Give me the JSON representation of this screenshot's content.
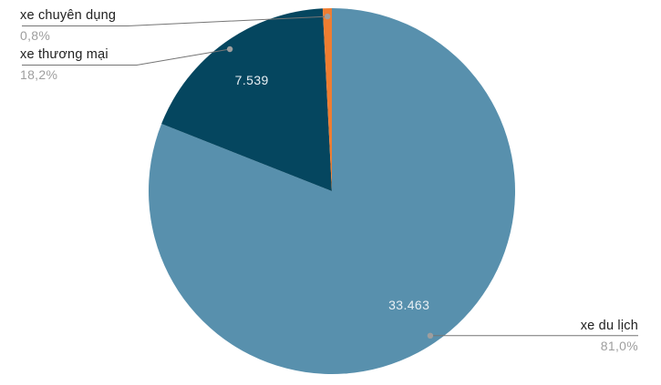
{
  "page": {
    "background": "#ffffff"
  },
  "chart_data": {
    "type": "pie",
    "title": "",
    "legend_position": "none",
    "start_angle_deg": -90,
    "direction": "clockwise",
    "slices": [
      {
        "label": "xe du lịch",
        "percent": 81.0,
        "percent_label": "81,0%",
        "value": 33463,
        "value_label": "33.463",
        "color": "#5890ad",
        "callout_side": "right"
      },
      {
        "label": "xe thương mại",
        "percent": 18.2,
        "percent_label": "18,2%",
        "value": 7539,
        "value_label": "7.539",
        "color": "#05465f",
        "callout_side": "left"
      },
      {
        "label": "xe chuyên dụng",
        "percent": 0.8,
        "percent_label": "0,8%",
        "value_label": "",
        "color": "#ef7d31",
        "callout_side": "left"
      }
    ],
    "colors": {
      "label_text": "#212121",
      "percent_text": "#9e9e9e",
      "value_text": "#e9f0f4",
      "leader_line": "#757575",
      "leader_dot": "#9e9e9e"
    }
  }
}
